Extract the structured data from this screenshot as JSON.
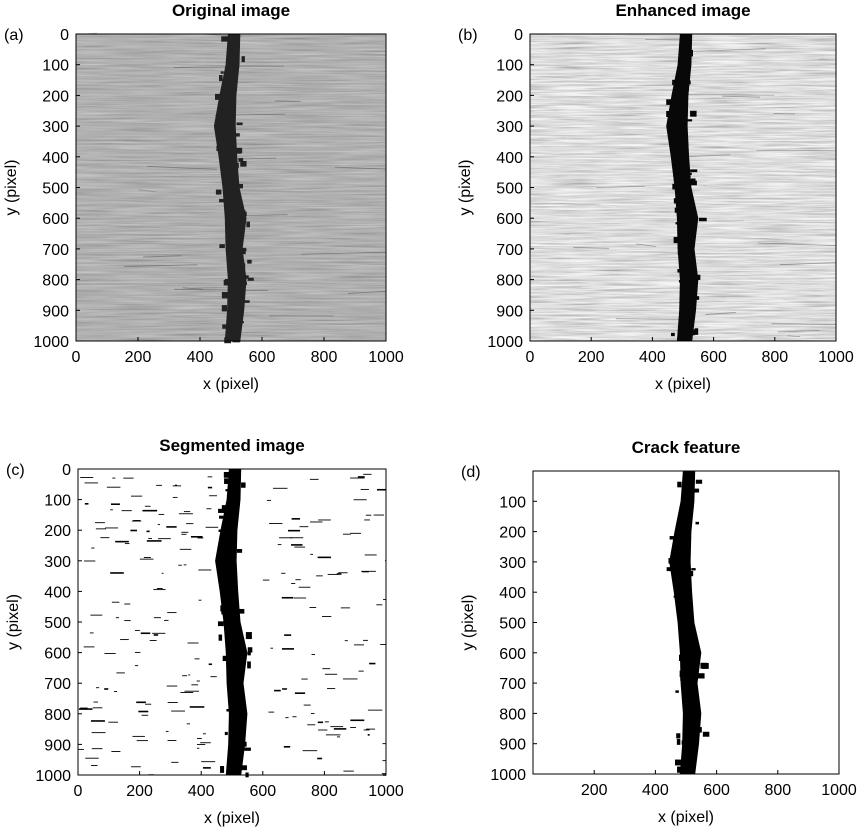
{
  "figure": {
    "panels": [
      {
        "id": "a",
        "panel_label": "(a)",
        "title": "Original image",
        "xlabel": "x (pixel)",
        "ylabel": "y (pixel)",
        "xticks": [
          "0",
          "200",
          "400",
          "600",
          "800",
          "1000"
        ],
        "yticks": [
          "0",
          "100",
          "200",
          "300",
          "400",
          "500",
          "600",
          "700",
          "800",
          "900",
          "1000"
        ],
        "render": "grayscale",
        "brightness": "dim"
      },
      {
        "id": "b",
        "panel_label": "(b)",
        "title": "Enhanced image",
        "xlabel": "x (pixel)",
        "ylabel": "y (pixel)",
        "xticks": [
          "0",
          "200",
          "400",
          "600",
          "800",
          "1000"
        ],
        "yticks": [
          "0",
          "100",
          "200",
          "300",
          "400",
          "500",
          "600",
          "700",
          "800",
          "900",
          "1000"
        ],
        "render": "grayscale",
        "brightness": "bright"
      },
      {
        "id": "c",
        "panel_label": "(c)",
        "title": "Segmented image",
        "xlabel": "x (pixel)",
        "ylabel": "y (pixel)",
        "xticks": [
          "0",
          "200",
          "400",
          "600",
          "800",
          "1000"
        ],
        "yticks": [
          "0",
          "100",
          "200",
          "300",
          "400",
          "500",
          "600",
          "700",
          "800",
          "900",
          "1000"
        ],
        "render": "binary-with-noise"
      },
      {
        "id": "d",
        "panel_label": "(d)",
        "title": "Crack feature",
        "xlabel": "x (pixel)",
        "ylabel": "y (pixel)",
        "xticks": [
          "200",
          "400",
          "600",
          "800",
          "1000"
        ],
        "yticks": [
          "100",
          "200",
          "300",
          "400",
          "500",
          "600",
          "700",
          "800",
          "900",
          "1000"
        ],
        "render": "binary-clean"
      }
    ]
  },
  "chart_data": [
    {
      "type": "heatmap",
      "title": "Original image",
      "xlabel": "x (pixel)",
      "ylabel": "y (pixel)",
      "xlim": [
        0,
        1000
      ],
      "ylim": [
        1000,
        0
      ],
      "colormap": "gray",
      "crack_centerline": {
        "y": [
          0,
          100,
          200,
          300,
          400,
          500,
          600,
          700,
          800,
          900,
          1000
        ],
        "x": [
          510,
          505,
          490,
          480,
          490,
          500,
          515,
          510,
          520,
          515,
          505
        ]
      }
    },
    {
      "type": "heatmap",
      "title": "Enhanced image",
      "xlabel": "x (pixel)",
      "ylabel": "y (pixel)",
      "xlim": [
        0,
        1000
      ],
      "ylim": [
        1000,
        0
      ],
      "colormap": "gray",
      "crack_centerline": {
        "y": [
          0,
          100,
          200,
          300,
          400,
          500,
          600,
          700,
          800,
          900,
          1000
        ],
        "x": [
          510,
          505,
          490,
          480,
          490,
          500,
          515,
          510,
          520,
          515,
          505
        ]
      }
    },
    {
      "type": "heatmap",
      "title": "Segmented image",
      "xlabel": "x (pixel)",
      "ylabel": "y (pixel)",
      "xlim": [
        0,
        1000
      ],
      "ylim": [
        1000,
        0
      ],
      "colormap": "binary",
      "crack_centerline": {
        "y": [
          0,
          100,
          200,
          300,
          400,
          500,
          600,
          700,
          800,
          900,
          1000
        ],
        "x": [
          510,
          505,
          490,
          480,
          490,
          500,
          515,
          510,
          520,
          515,
          505
        ]
      }
    },
    {
      "type": "heatmap",
      "title": "Crack feature",
      "xlabel": "x (pixel)",
      "ylabel": "y (pixel)",
      "xlim": [
        0,
        1000
      ],
      "ylim": [
        1000,
        0
      ],
      "colormap": "binary",
      "crack_centerline": {
        "y": [
          0,
          100,
          200,
          300,
          400,
          500,
          600,
          700,
          800,
          900,
          1000
        ],
        "x": [
          510,
          505,
          490,
          480,
          490,
          500,
          515,
          510,
          520,
          515,
          505
        ]
      }
    }
  ]
}
